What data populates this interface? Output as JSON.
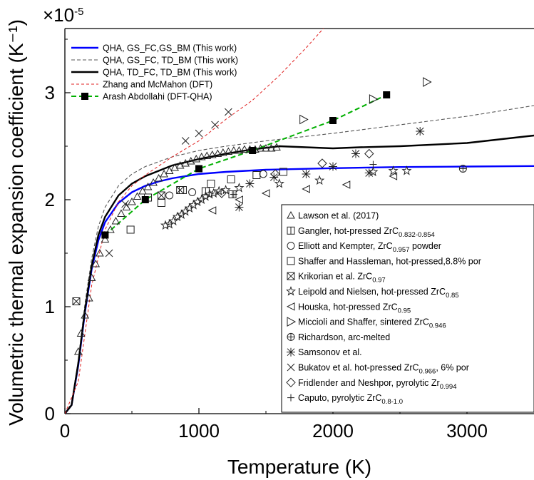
{
  "chart_data": {
    "type": "scatter",
    "xlabel": "Temperature (K)",
    "ylabel": "Volumetric thermal expansion coefficient (K⁻¹)",
    "multiplier": "×10",
    "multiplier_exp": "-5",
    "xlim": [
      0,
      3500
    ],
    "ylim": [
      0,
      3.6
    ],
    "xticks": [
      {
        "v": 0,
        "label": "0"
      },
      {
        "v": 1000,
        "label": "1000"
      },
      {
        "v": 2000,
        "label": "2000"
      },
      {
        "v": 3000,
        "label": "3000"
      }
    ],
    "yticks": [
      {
        "v": 0,
        "label": "0"
      },
      {
        "v": 1,
        "label": "1"
      },
      {
        "v": 2,
        "label": "2"
      },
      {
        "v": 3,
        "label": "3"
      }
    ],
    "legend_top_placement": "top-left",
    "legend_bottom_placement": "bottom-right",
    "lines": [
      {
        "name": "QHA, GS_FC,GS_BM (This work)",
        "color": "#0000ff",
        "dash": "",
        "width": 2.4,
        "points": [
          [
            0,
            0
          ],
          [
            50,
            0.08
          ],
          [
            100,
            0.45
          ],
          [
            150,
            0.95
          ],
          [
            200,
            1.35
          ],
          [
            250,
            1.62
          ],
          [
            300,
            1.79
          ],
          [
            400,
            1.97
          ],
          [
            500,
            2.07
          ],
          [
            600,
            2.13
          ],
          [
            700,
            2.17
          ],
          [
            800,
            2.2
          ],
          [
            1000,
            2.24
          ],
          [
            1200,
            2.26
          ],
          [
            1500,
            2.28
          ],
          [
            2000,
            2.295
          ],
          [
            2500,
            2.305
          ],
          [
            3000,
            2.31
          ],
          [
            3500,
            2.315
          ]
        ]
      },
      {
        "name": "QHA, GS_FC, TD_BM (This work)",
        "color": "#555555",
        "dash": "5,3",
        "width": 1.1,
        "points": [
          [
            0,
            0
          ],
          [
            50,
            0.1
          ],
          [
            100,
            0.5
          ],
          [
            150,
            1.03
          ],
          [
            200,
            1.45
          ],
          [
            250,
            1.75
          ],
          [
            300,
            1.93
          ],
          [
            400,
            2.13
          ],
          [
            500,
            2.24
          ],
          [
            600,
            2.31
          ],
          [
            800,
            2.4
          ],
          [
            1000,
            2.46
          ],
          [
            1200,
            2.5
          ],
          [
            1500,
            2.55
          ],
          [
            2000,
            2.62
          ],
          [
            2500,
            2.7
          ],
          [
            3000,
            2.78
          ],
          [
            3500,
            2.88
          ]
        ]
      },
      {
        "name": "QHA, TD_FC, TD_BM (This work)",
        "color": "#000000",
        "dash": "",
        "width": 2.4,
        "points": [
          [
            0,
            0
          ],
          [
            50,
            0.08
          ],
          [
            100,
            0.47
          ],
          [
            150,
            0.97
          ],
          [
            200,
            1.38
          ],
          [
            250,
            1.67
          ],
          [
            300,
            1.84
          ],
          [
            400,
            2.04
          ],
          [
            500,
            2.15
          ],
          [
            600,
            2.22
          ],
          [
            800,
            2.32
          ],
          [
            1000,
            2.38
          ],
          [
            1200,
            2.43
          ],
          [
            1400,
            2.47
          ],
          [
            1600,
            2.5
          ],
          [
            1800,
            2.49
          ],
          [
            2000,
            2.48
          ],
          [
            2200,
            2.49
          ],
          [
            2500,
            2.5
          ],
          [
            3000,
            2.53
          ],
          [
            3500,
            2.6
          ]
        ]
      },
      {
        "name": "Zhang and McMahon (DFT)",
        "color": "#e02020",
        "dash": "4,3",
        "width": 1,
        "points": [
          [
            0,
            0
          ],
          [
            100,
            0.3
          ],
          [
            200,
            1.2
          ],
          [
            300,
            1.72
          ],
          [
            400,
            1.98
          ],
          [
            500,
            2.13
          ],
          [
            600,
            2.23
          ],
          [
            800,
            2.4
          ],
          [
            1000,
            2.55
          ],
          [
            1200,
            2.75
          ],
          [
            1400,
            2.93
          ],
          [
            1600,
            3.16
          ],
          [
            1800,
            3.42
          ],
          [
            2000,
            3.7
          ]
        ]
      },
      {
        "name": "Arash Abdollahi (DFT-QHA)",
        "color": "#00b000",
        "dash": "7,4",
        "width": 2,
        "points": [
          [
            300,
            1.67
          ],
          [
            600,
            2.0
          ],
          [
            1000,
            2.29
          ],
          [
            1400,
            2.46
          ],
          [
            2000,
            2.74
          ],
          [
            2400,
            2.98
          ]
        ],
        "marker": "square"
      }
    ],
    "series": [
      {
        "name": "Lawson et al. (2017)",
        "sub": "",
        "marker": "triangle",
        "points": [
          [
            100,
            0.58
          ],
          [
            120,
            0.75
          ],
          [
            150,
            0.92
          ],
          [
            180,
            1.08
          ],
          [
            200,
            1.27
          ],
          [
            230,
            1.4
          ],
          [
            260,
            1.5
          ],
          [
            300,
            1.63
          ],
          [
            340,
            1.72
          ],
          [
            380,
            1.8
          ],
          [
            420,
            1.87
          ],
          [
            460,
            1.93
          ],
          [
            500,
            1.98
          ],
          [
            540,
            2.03
          ],
          [
            580,
            2.08
          ],
          [
            620,
            2.12
          ],
          [
            660,
            2.16
          ],
          [
            700,
            2.2
          ],
          [
            740,
            2.24
          ],
          [
            780,
            2.27
          ],
          [
            820,
            2.3
          ],
          [
            860,
            2.32
          ],
          [
            900,
            2.34
          ],
          [
            940,
            2.36
          ],
          [
            980,
            2.38
          ],
          [
            1020,
            2.4
          ],
          [
            1060,
            2.41
          ],
          [
            1100,
            2.42
          ],
          [
            1140,
            2.43
          ],
          [
            1180,
            2.44
          ],
          [
            1220,
            2.45
          ],
          [
            1260,
            2.46
          ],
          [
            1300,
            2.46
          ],
          [
            1340,
            2.47
          ],
          [
            1380,
            2.47
          ],
          [
            1420,
            2.47
          ],
          [
            1460,
            2.48
          ],
          [
            1500,
            2.48
          ],
          [
            1540,
            2.48
          ],
          [
            1580,
            2.49
          ]
        ]
      },
      {
        "name": "Gangler, hot-pressed ZrC",
        "sub": "0.832-0.854",
        "marker": "boxvline",
        "points": [
          [
            1050,
            2.08
          ],
          [
            1250,
            2.05
          ]
        ]
      },
      {
        "name": "Elliott and Kempter, ZrC",
        "sub": "0.957",
        "marker": "circle",
        "sub_tail": " powder",
        "points": [
          [
            780,
            2.04
          ],
          [
            950,
            2.07
          ],
          [
            1480,
            2.24
          ]
        ]
      },
      {
        "name": "Shaffer and Hassleman, hot-pressed,8.8% por",
        "sub": "",
        "marker": "square",
        "points": [
          [
            490,
            1.72
          ],
          [
            620,
            2.02
          ],
          [
            720,
            1.97
          ],
          [
            880,
            2.09
          ],
          [
            1090,
            2.15
          ],
          [
            1240,
            2.19
          ],
          [
            1430,
            2.23
          ],
          [
            1630,
            2.26
          ]
        ]
      },
      {
        "name": "Krikorian et al. ZrC",
        "sub": "0.97",
        "marker": "boxx",
        "points": [
          [
            85,
            1.05
          ],
          [
            720,
            2.04
          ],
          [
            860,
            2.09
          ]
        ]
      },
      {
        "name": "Leipold and Nielsen, hot-pressed ZrC",
        "sub": "0.85",
        "marker": "star",
        "points": [
          [
            750,
            1.76
          ],
          [
            780,
            1.77
          ],
          [
            810,
            1.8
          ],
          [
            840,
            1.84
          ],
          [
            870,
            1.86
          ],
          [
            900,
            1.89
          ],
          [
            930,
            1.92
          ],
          [
            960,
            1.95
          ],
          [
            990,
            1.98
          ],
          [
            1020,
            2.0
          ],
          [
            1050,
            2.03
          ],
          [
            1080,
            2.05
          ],
          [
            1110,
            2.06
          ],
          [
            1150,
            2.08
          ],
          [
            1200,
            2.09
          ],
          [
            1300,
            2.11
          ],
          [
            1600,
            2.15
          ],
          [
            1900,
            2.18
          ],
          [
            2300,
            2.26
          ],
          [
            2450,
            2.27
          ],
          [
            2550,
            2.27
          ]
        ]
      },
      {
        "name": "Houska, hot-pressed ZrC",
        "sub": "0.95",
        "marker": "triangle_left",
        "points": [
          [
            1100,
            1.9
          ],
          [
            1300,
            2.0
          ],
          [
            1500,
            2.06
          ],
          [
            1800,
            2.1
          ],
          [
            2100,
            2.14
          ],
          [
            2450,
            2.22
          ]
        ]
      },
      {
        "name": "Miccioli and Shaffer, sintered ZrC",
        "sub": "0.946",
        "marker": "triangle_right",
        "points": [
          [
            1780,
            2.75
          ],
          [
            2300,
            2.94
          ],
          [
            2700,
            3.1
          ]
        ]
      },
      {
        "name": "Richardson, arc-melted",
        "sub": "",
        "marker": "circleplus",
        "points": [
          [
            2970,
            2.29
          ]
        ]
      },
      {
        "name": "Samsonov et al.",
        "sub": "",
        "marker": "asterisk",
        "points": [
          [
            1300,
            1.93
          ],
          [
            1380,
            2.15
          ],
          [
            1560,
            2.21
          ],
          [
            1800,
            2.24
          ],
          [
            2000,
            2.31
          ],
          [
            2170,
            2.43
          ],
          [
            2270,
            2.25
          ],
          [
            2650,
            2.64
          ]
        ]
      },
      {
        "name": "Bukatov et al. hot-pressed ZrC",
        "sub": "0.966",
        "marker": "x",
        "sub_tail": ", 6% por",
        "points": [
          [
            330,
            1.5
          ],
          [
            450,
            1.96
          ],
          [
            900,
            2.55
          ],
          [
            1000,
            2.62
          ],
          [
            1120,
            2.7
          ],
          [
            1220,
            2.82
          ]
        ]
      },
      {
        "name": "Fridlender and Neshpor, pyrolytic Zr",
        "sub": "0.994",
        "marker": "diamond",
        "points": [
          [
            1170,
            2.06
          ],
          [
            1570,
            2.24
          ],
          [
            1920,
            2.34
          ],
          [
            2270,
            2.43
          ]
        ]
      },
      {
        "name": "Caputo, pyrolytic ZrC",
        "sub": "0.8-1.0",
        "marker": "plus",
        "points": [
          [
            1260,
            2.05
          ],
          [
            2300,
            2.33
          ]
        ]
      }
    ]
  }
}
